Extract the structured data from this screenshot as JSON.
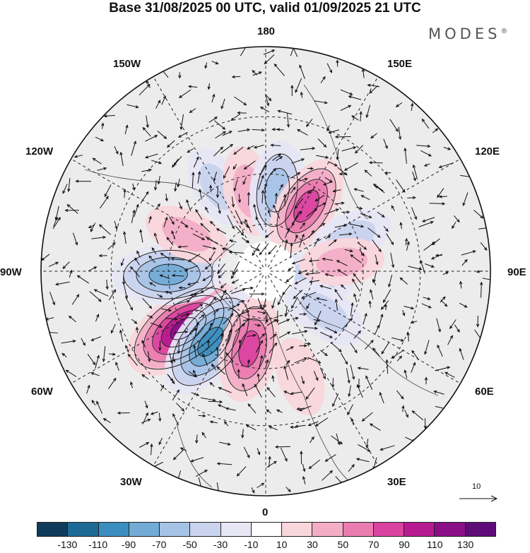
{
  "title": "Base 31/08/2025 00 UTC, valid 01/09/2025 21 UTC",
  "brand": "MODES",
  "brand_mark": "®",
  "longitude_labels": {
    "lon_180": "180",
    "lon_150w": "150W",
    "lon_150e": "150E",
    "lon_120w": "120W",
    "lon_120e": "120E",
    "lon_90w": "90W",
    "lon_90e": "90E",
    "lon_60w": "60W",
    "lon_60e": "60E",
    "lon_30w": "30W",
    "lon_30e": "30E",
    "lon_0": "0"
  },
  "reference_vector": {
    "label": "10"
  },
  "colorbar": {
    "colors": [
      "#0f3c5a",
      "#1e6a96",
      "#3b8ec0",
      "#72acd6",
      "#a6c3e6",
      "#c9d3ee",
      "#e7e6f4",
      "#ffffff",
      "#f9d6dc",
      "#f3aec6",
      "#ea7cb0",
      "#da44a0",
      "#b81b90",
      "#8b0f86",
      "#5e0d78"
    ],
    "tick_labels": [
      "-130",
      "-110",
      "-90",
      "-70",
      "-50",
      "-30",
      "-10",
      "10",
      "30",
      "50",
      "70",
      "90",
      "110",
      "130"
    ]
  },
  "field_anomalies": [
    {
      "name": "pos-60w",
      "lon": -55,
      "colat": 41,
      "value": 120
    },
    {
      "name": "neg-40w",
      "lon": -38,
      "colat": 37,
      "value": -105
    },
    {
      "name": "pos-15w",
      "lon": -12,
      "colat": 33,
      "value": 75
    },
    {
      "name": "neg-90w",
      "lon": -88,
      "colat": 40,
      "value": -85
    },
    {
      "name": "pos-120w",
      "lon": -115,
      "colat": 36,
      "value": 35
    },
    {
      "name": "neg-150w",
      "lon": -150,
      "colat": 40,
      "value": -30
    },
    {
      "name": "pos-170w",
      "lon": -168,
      "colat": 34,
      "value": 40
    },
    {
      "name": "neg-170e",
      "lon": 172,
      "colat": 34,
      "value": -60
    },
    {
      "name": "pos-150e",
      "lon": 148,
      "colat": 32,
      "value": 70
    },
    {
      "name": "neg-110e",
      "lon": 112,
      "colat": 38,
      "value": -30
    },
    {
      "name": "neg-80e",
      "lon": 82,
      "colat": 20,
      "value": -30
    },
    {
      "name": "pos-95e",
      "lon": 97,
      "colat": 32,
      "value": 30
    },
    {
      "name": "neg-55e",
      "lon": 55,
      "colat": 30,
      "value": -40
    },
    {
      "name": "pos-20e",
      "lon": 18,
      "colat": 45,
      "value": 20
    }
  ]
}
